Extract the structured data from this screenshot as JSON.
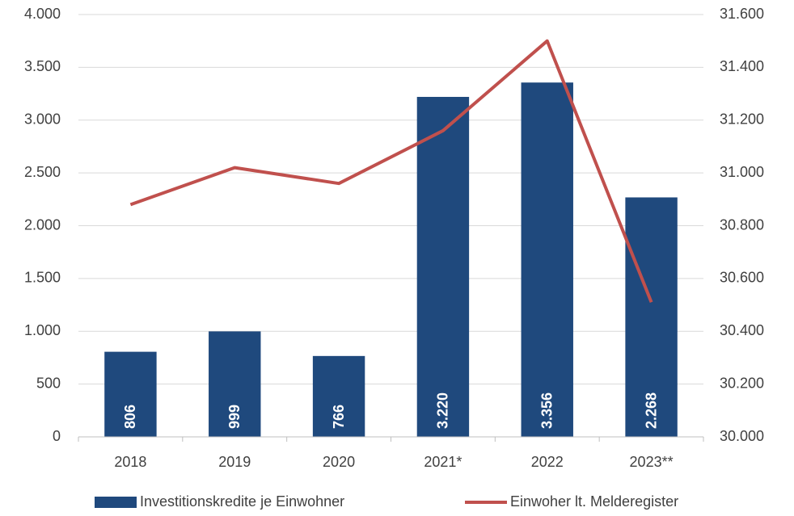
{
  "chart_data": {
    "type": "bar",
    "categories": [
      "2018",
      "2019",
      "2020",
      "2021*",
      "2022",
      "2023**"
    ],
    "series": [
      {
        "name": "Investitionskredite je Einwohner",
        "type": "bar",
        "color": "#1f497d",
        "values": [
          806,
          999,
          766,
          3220,
          3356,
          2268
        ],
        "value_labels": [
          "806",
          "999",
          "766",
          "3.220",
          "3.356",
          "2.268"
        ]
      },
      {
        "name": "Einwoher lt. Melderegister",
        "type": "line",
        "axis": "y2",
        "color": "#c0504d",
        "values": [
          30880,
          31020,
          30960,
          31160,
          31500,
          30510
        ]
      }
    ],
    "ylim": [
      0,
      4000
    ],
    "yticks": [
      0,
      500,
      {
        "value": 1000,
        "label": "1.000"
      },
      {
        "value": 1500,
        "label": "1.500"
      },
      {
        "value": 2000,
        "label": "2.000"
      },
      {
        "value": 2500,
        "label": "2.500"
      },
      {
        "value": 3000,
        "label": "3.000"
      },
      {
        "value": 3500,
        "label": "3.500"
      },
      {
        "value": 4000,
        "label": "4.000"
      }
    ],
    "y2lim": [
      30000,
      31600
    ],
    "y2ticks": [
      {
        "value": 30000,
        "label": "30.000"
      },
      {
        "value": 30200,
        "label": "30.200"
      },
      {
        "value": 30400,
        "label": "30.400"
      },
      {
        "value": 30600,
        "label": "30.600"
      },
      {
        "value": 30800,
        "label": "30.800"
      },
      {
        "value": 31000,
        "label": "31.000"
      },
      {
        "value": 31200,
        "label": "31.200"
      },
      {
        "value": 31400,
        "label": "31.400"
      },
      {
        "value": 31600,
        "label": "31.600"
      }
    ],
    "grid": true,
    "legend": "bottom"
  }
}
